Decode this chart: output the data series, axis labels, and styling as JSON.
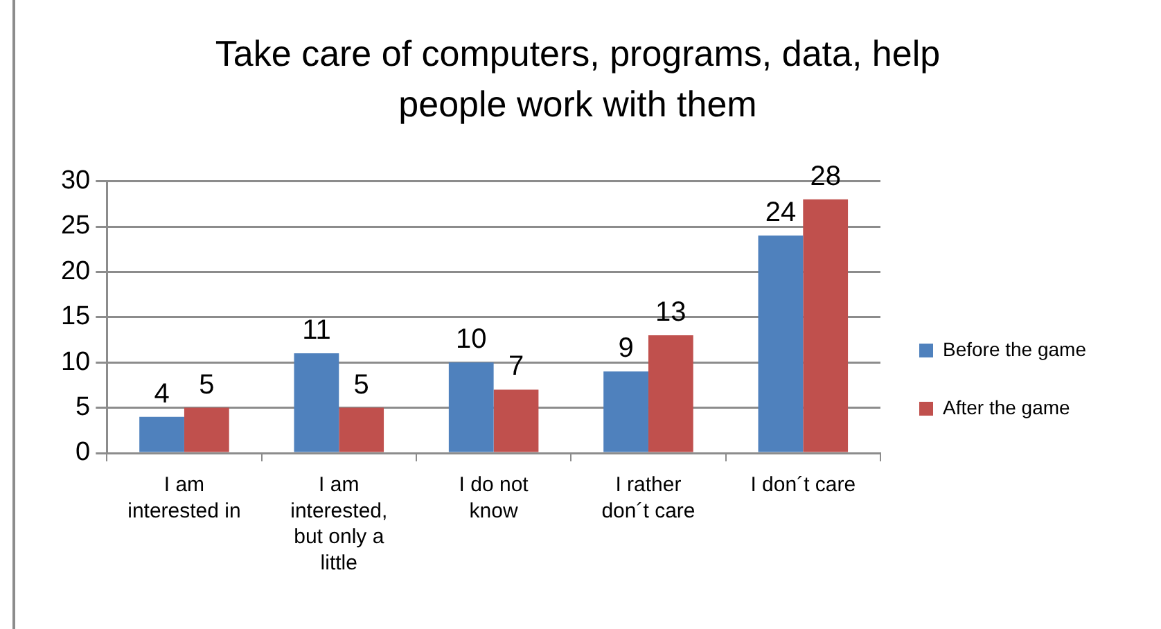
{
  "chart_data": {
    "type": "bar",
    "title": "Take care of computers, programs, data, help people work with them",
    "categories": [
      "I am interested in",
      "I am interested, but only a little",
      "I do not know",
      "I rather don´t care",
      "I don´t care"
    ],
    "series": [
      {
        "name": "Before the game",
        "color": "#4f81bd",
        "values": [
          4,
          11,
          10,
          9,
          24
        ]
      },
      {
        "name": "After the game",
        "color": "#c0504d",
        "values": [
          5,
          5,
          7,
          13,
          28
        ]
      }
    ],
    "ylim": [
      0,
      30
    ],
    "yticks": [
      0,
      5,
      10,
      15,
      20,
      25,
      30
    ],
    "grid": "y",
    "legend": "right",
    "data_labels": true
  }
}
